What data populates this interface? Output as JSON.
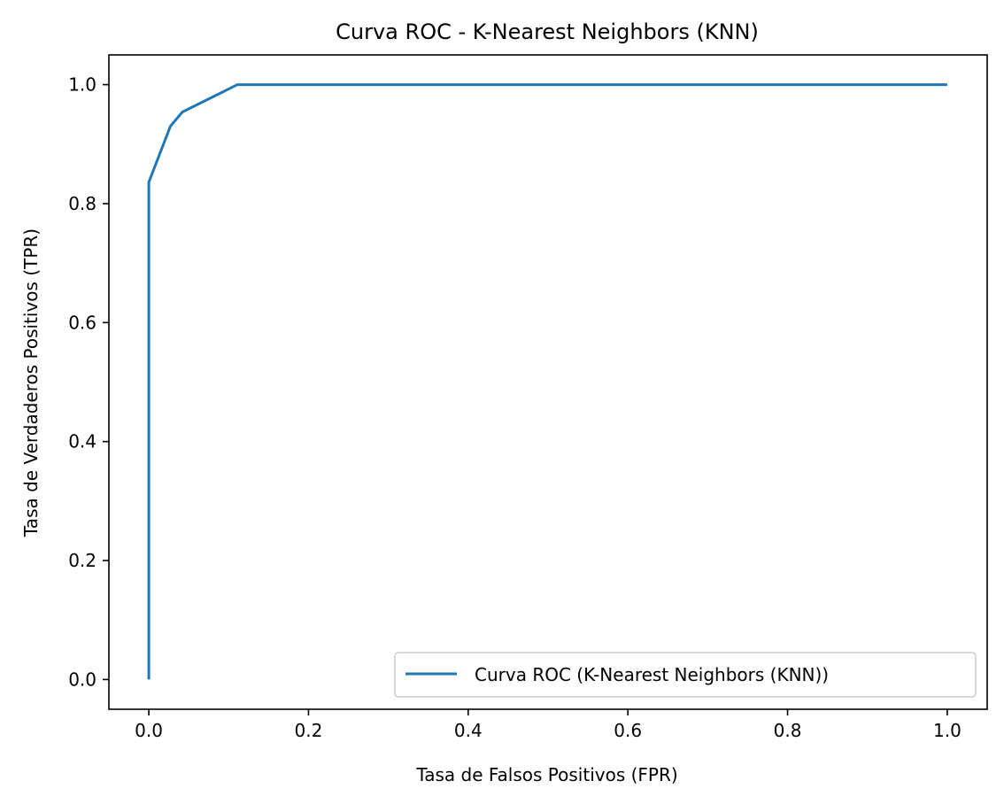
{
  "chart_data": {
    "type": "line",
    "title": "Curva ROC - K-Nearest Neighbors (KNN)",
    "xlabel": "Tasa de Falsos Positivos (FPR)",
    "ylabel": "Tasa de Verdaderos Positivos (TPR)",
    "xlim": [
      -0.05,
      1.05
    ],
    "ylim": [
      -0.05,
      1.05
    ],
    "x_ticks": [
      0.0,
      0.2,
      0.4,
      0.6,
      0.8,
      1.0
    ],
    "y_ticks": [
      0.0,
      0.2,
      0.4,
      0.6,
      0.8,
      1.0
    ],
    "x_tick_labels": [
      "0.0",
      "0.2",
      "0.4",
      "0.6",
      "0.8",
      "1.0"
    ],
    "y_tick_labels": [
      "0.0",
      "0.2",
      "0.4",
      "0.6",
      "0.8",
      "1.0"
    ],
    "grid": false,
    "legend_position": "lower-right",
    "series": [
      {
        "name": "Curva ROC (K-Nearest Neighbors (KNN))",
        "color": "#1f77b4",
        "x": [
          0.0,
          0.0,
          0.027,
          0.042,
          0.111,
          1.0
        ],
        "y": [
          0.0,
          0.836,
          0.93,
          0.954,
          1.0,
          1.0
        ]
      }
    ]
  }
}
